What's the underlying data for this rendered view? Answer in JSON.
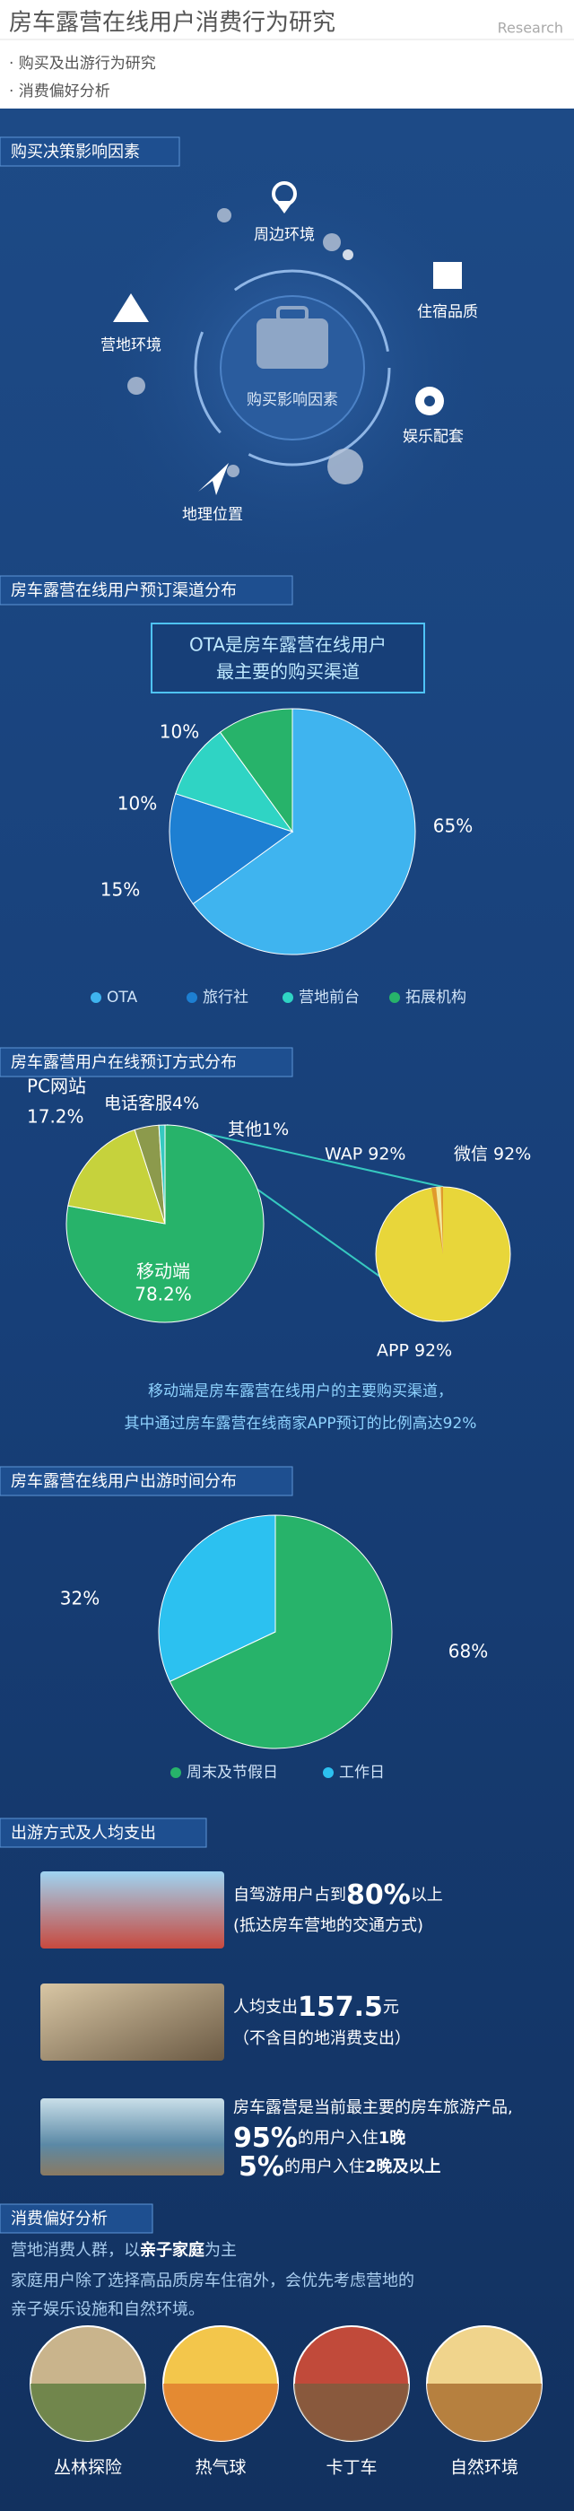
{
  "header": {
    "title": "房车露营在线用户消费行为研究",
    "subtitle": "Research",
    "bullets": [
      "· 购买及出游行为研究",
      "· 消费偏好分析"
    ]
  },
  "factors": {
    "title": "购买决策影响因素",
    "center": "购买影响因素",
    "items": [
      "周边环境",
      "住宿品质",
      "营地环境",
      "娱乐配套",
      "地理位置"
    ]
  },
  "chart_data": [
    {
      "type": "pie",
      "title": "房车露营在线用户预订渠道分布",
      "annotation": [
        "OTA是房车露营在线用户",
        "最主要的购买渠道"
      ],
      "categories": [
        "OTA",
        "旅行社",
        "营地前台",
        "拓展机构"
      ],
      "values": [
        65,
        15,
        10,
        10
      ],
      "value_labels": [
        "65%",
        "15%",
        "10%",
        "10%"
      ],
      "colors": [
        "#3fb4ef",
        "#1d7fd2",
        "#2fd4c4",
        "#27b36a"
      ],
      "legend": true
    },
    {
      "type": "pie",
      "title": "房车露营用户在线预订方式分布",
      "categories": [
        "移动端",
        "PC网站",
        "电话客服",
        "其他"
      ],
      "values": [
        78.2,
        17.2,
        4,
        1
      ],
      "value_labels": [
        "78.2%",
        "17.2%",
        "4%",
        "1%"
      ],
      "colors": [
        "#27b36a",
        "#c6d23c",
        "#8c9a4c",
        "#36c9c0"
      ],
      "legend": false,
      "callouts": [
        "WAP 92%",
        "微信 92%",
        "APP 92%"
      ],
      "note": [
        "移动端是房车露营在线用户的主要购买渠道，",
        "其中通过房车露营在线商家APP预订的比例高达92%"
      ]
    },
    {
      "type": "pie",
      "title": "房车露营在线用户出游时间分布",
      "categories": [
        "周末及节假日",
        "工作日"
      ],
      "values": [
        68,
        32
      ],
      "value_labels": [
        "68%",
        "32%"
      ],
      "colors": [
        "#27b36a",
        "#2cc1f0"
      ],
      "legend": true
    }
  ],
  "travel": {
    "title": "出游方式及人均支出",
    "rows": [
      {
        "text": "自驾游用户占到",
        "highlight": "80%",
        "suffix": "以上",
        "note": "(抵达房车营地的交通方式)"
      },
      {
        "text": "人均支出",
        "highlight": "157.5",
        "suffix": "元",
        "note": "（不含目的地消费支出）"
      },
      {
        "text": "房车露营是当前最主要的房车旅游产品,",
        "lines": [
          {
            "highlight": "95%",
            "text": "的用户入住",
            "bold": "1晚"
          },
          {
            "highlight": "5%",
            "text": "的用户入住",
            "bold": "2晚及以上"
          }
        ]
      }
    ]
  },
  "preference": {
    "title": "消费偏好分析",
    "intro_prefix": "营地消费人群，以",
    "intro_bold": "亲子家庭",
    "intro_suffix": "为主",
    "lines": [
      "家庭用户除了选择高品质房车住宿外，会优先考虑营地的",
      "亲子娱乐设施和自然环境。"
    ],
    "items": [
      "丛林探险",
      "热气球",
      "卡丁车",
      "自然环境"
    ]
  }
}
